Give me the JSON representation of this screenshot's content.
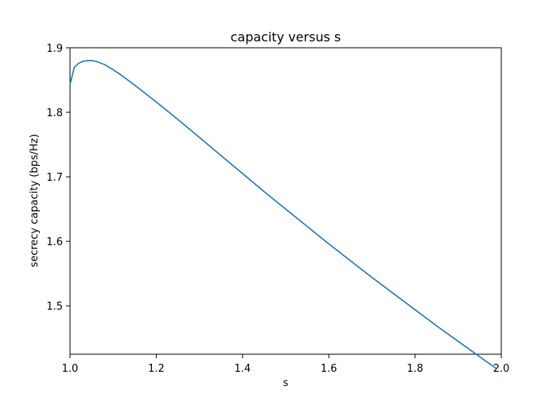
{
  "chart_data": {
    "type": "line",
    "title": "capacity versus s",
    "xlabel": "s",
    "ylabel": "secrecy capacity (bps/Hz)",
    "xlim": [
      1.0,
      2.0
    ],
    "ylim": [
      1.425,
      1.9
    ],
    "xticks": [
      "1.0",
      "1.2",
      "1.4",
      "1.6",
      "1.8",
      "2.0"
    ],
    "yticks": [
      "1.5",
      "1.6",
      "1.7",
      "1.8",
      "1.9"
    ],
    "grid": false,
    "series": [
      {
        "color": "#1f77b4",
        "x": [
          1.0,
          1.01,
          1.02,
          1.03,
          1.04,
          1.05,
          1.06,
          1.08,
          1.1,
          1.12,
          1.15,
          1.2,
          1.25,
          1.3,
          1.35,
          1.4,
          1.45,
          1.5,
          1.55,
          1.6,
          1.65,
          1.7,
          1.75,
          1.8,
          1.85,
          1.9,
          1.95,
          1.99
        ],
        "y": [
          1.843,
          1.87,
          1.876,
          1.879,
          1.88,
          1.88,
          1.879,
          1.874,
          1.866,
          1.857,
          1.842,
          1.816,
          1.789,
          1.761,
          1.733,
          1.705,
          1.677,
          1.65,
          1.623,
          1.596,
          1.57,
          1.544,
          1.519,
          1.494,
          1.469,
          1.445,
          1.421,
          1.402
        ]
      }
    ]
  }
}
